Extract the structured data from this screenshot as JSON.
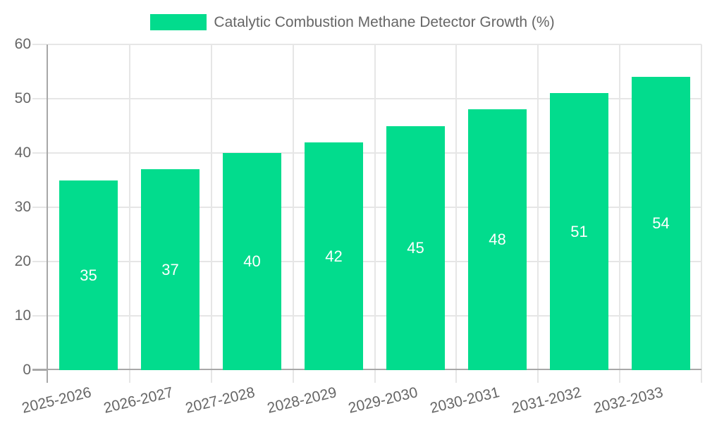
{
  "chart_data": {
    "type": "bar",
    "title": "Catalytic Combustion Methane Detector Growth (%)",
    "legend_entries": [
      {
        "label": "Catalytic Combustion Methane Detector Growth (%)",
        "color": "#02dc8d"
      }
    ],
    "legend_position": "top-center",
    "categories": [
      "2025-2026",
      "2026-2027",
      "2027-2028",
      "2028-2029",
      "2029-2030",
      "2030-2031",
      "2031-2032",
      "2032-2033"
    ],
    "values": [
      35,
      37,
      40,
      42,
      45,
      48,
      51,
      54
    ],
    "bar_labels": [
      "35",
      "37",
      "40",
      "42",
      "45",
      "48",
      "51",
      "54"
    ],
    "xlabel": "",
    "ylabel": "",
    "ylim": [
      0,
      60
    ],
    "yticks": [
      0,
      10,
      20,
      30,
      40,
      50,
      60
    ],
    "grid": true,
    "x_label_rotation_deg": -13.5
  },
  "colors": {
    "bar": "#02dc8d",
    "grid": "#e6e6e6",
    "axis": "#a8a8a8",
    "tick_text": "#666666",
    "legend_text": "#666666",
    "value_text": "#ffffff",
    "background": "#ffffff"
  }
}
